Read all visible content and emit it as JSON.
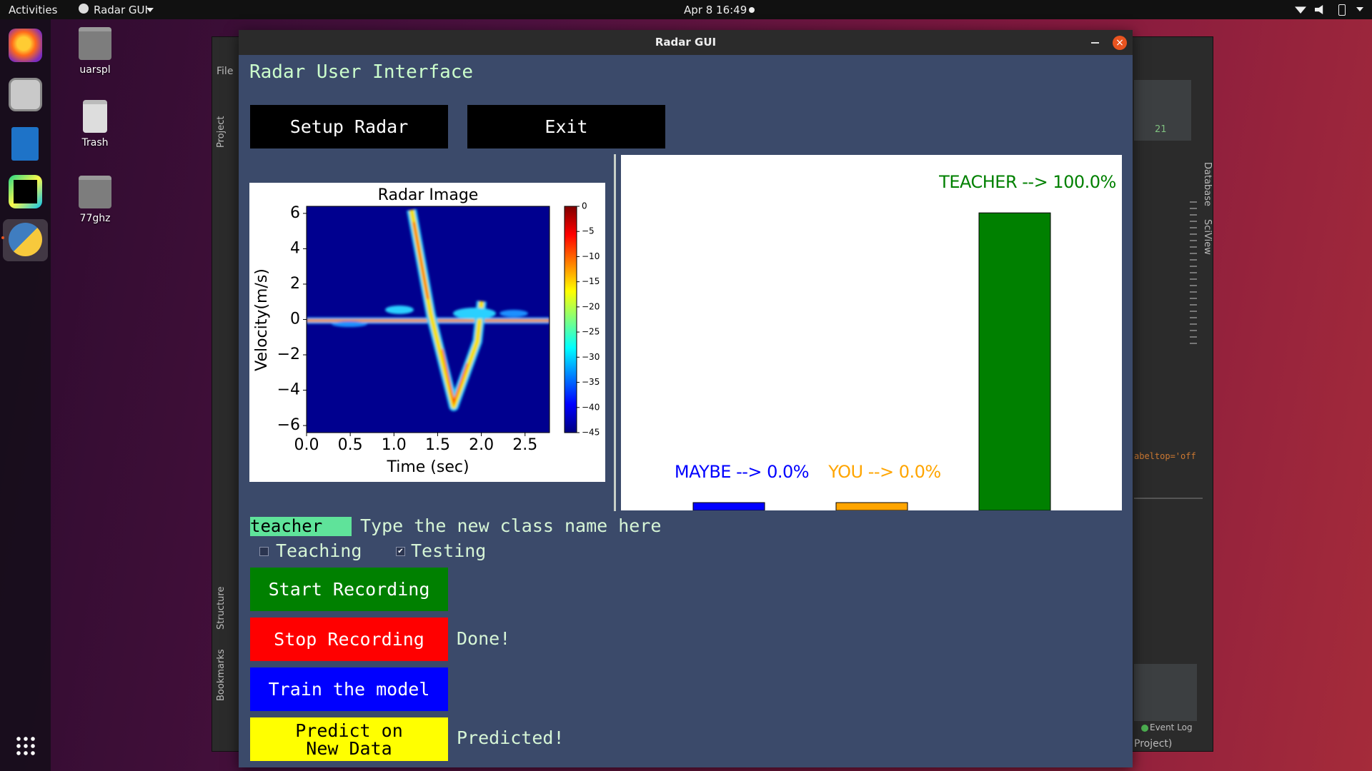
{
  "topbar": {
    "activities": "Activities",
    "app_menu": "Radar GUI",
    "clock": "Apr 8  16:49"
  },
  "desktop_icons": [
    "uarspl",
    "Trash",
    "77ghz"
  ],
  "ide": {
    "menu": "File",
    "left_tabs": [
      "Project",
      "Structure",
      "Bookmarks"
    ],
    "right_tabs": [
      "Database",
      "SciView"
    ],
    "problems_count": "21",
    "code_fragment": "abeltop='off",
    "event_log": "Event Log",
    "status_fragment": "Project)"
  },
  "window": {
    "title": "Radar GUI",
    "heading": "Radar User Interface",
    "buttons": {
      "setup": "Setup Radar",
      "exit": "Exit",
      "start": "Start Recording",
      "stop": "Stop Recording",
      "train": "Train the model",
      "predict": [
        "Predict on",
        "New Data"
      ]
    },
    "class_entry": "teacher",
    "class_hint": "Type the new class name here",
    "checkboxes": [
      {
        "label": "Teaching",
        "checked": false
      },
      {
        "label": "Testing",
        "checked": true
      }
    ],
    "stop_status": "Done!",
    "predict_status": "Predicted!"
  },
  "chart_data": [
    {
      "type": "heatmap",
      "title": "Radar Image",
      "xlabel": "Time (sec)",
      "ylabel": "Velocity(m/s)",
      "xlim": [
        0,
        2.78
      ],
      "xticks": [
        {
          "value": 0,
          "label": "0.0"
        },
        0.5,
        {
          "value": 1,
          "label": "1.0"
        },
        1.5,
        {
          "value": 2,
          "label": "2.0"
        },
        2.5
      ],
      "ylim": [
        -6.4,
        6.4
      ],
      "yticks": [
        {
          "value": -6,
          "label": "−6"
        },
        {
          "value": -4,
          "label": "−4"
        },
        {
          "value": -2,
          "label": "−2"
        },
        0,
        2,
        4,
        6
      ],
      "colorbar": {
        "lim": [
          -45,
          0
        ],
        "colormap": "jet",
        "ticks": [
          0,
          {
            "value": -5,
            "label": "−5"
          },
          {
            "value": -10,
            "label": "−10"
          },
          {
            "value": -15,
            "label": "−15"
          },
          {
            "value": -20,
            "label": "−20"
          },
          {
            "value": -25,
            "label": "−25"
          },
          {
            "value": -30,
            "label": "−30"
          },
          {
            "value": -35,
            "label": "−35"
          },
          {
            "value": -40,
            "label": "−40"
          },
          {
            "value": -45,
            "label": "−45"
          }
        ]
      }
    },
    {
      "type": "bar",
      "categories": [
        "MAYBE --> 0.0%",
        "YOU --> 0.0%",
        "TEACHER --> 100.0%"
      ],
      "values": [
        0,
        0,
        100
      ],
      "colors": [
        "#0000ff",
        "#ffa500",
        "#008000"
      ],
      "ylim": [
        -2.7,
        120
      ]
    }
  ]
}
